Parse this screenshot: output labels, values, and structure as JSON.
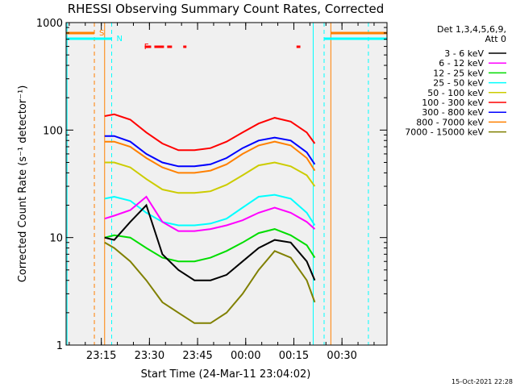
{
  "chart_data": {
    "type": "line",
    "title": "RHESSI Observing Summary Count Rates, Corrected",
    "xlabel": "Start Time (24-Mar-11 23:04:02)",
    "ylabel": "Corrected Count Rate (s⁻¹ detector⁻¹)",
    "yscale": "log",
    "ylim": [
      1,
      1000
    ],
    "xlim_minutes": [
      0,
      100
    ],
    "x_unit": "minutes after start time",
    "xticks": [
      {
        "label": "23:15",
        "minutes": 10.97
      },
      {
        "label": "23:30",
        "minutes": 25.97
      },
      {
        "label": "23:45",
        "minutes": 40.97
      },
      {
        "label": "00:00",
        "minutes": 55.97
      },
      {
        "label": "00:15",
        "minutes": 70.97
      },
      {
        "label": "00:30",
        "minutes": 85.97
      }
    ],
    "yticks": [
      {
        "label": "1",
        "value": 1
      },
      {
        "label": "10",
        "value": 10
      },
      {
        "label": "100",
        "value": 100
      },
      {
        "label": "1000",
        "value": 1000
      }
    ],
    "legend": {
      "position": "right",
      "header": [
        "Det 1,3,4,5,6,9,",
        "Att 0"
      ],
      "entries": [
        {
          "label": "3 - 6 keV",
          "color": "#000000"
        },
        {
          "label": "6 - 12 keV",
          "color": "#ff00ff"
        },
        {
          "label": "12 - 25 keV",
          "color": "#00dd00"
        },
        {
          "label": "25 - 50 keV",
          "color": "#00ffff"
        },
        {
          "label": "50 - 100 keV",
          "color": "#cccc00"
        },
        {
          "label": "100 - 300 keV",
          "color": "#ff0000"
        },
        {
          "label": "300 - 800 keV",
          "color": "#0000ff"
        },
        {
          "label": "800 - 7000 keV",
          "color": "#ff8000"
        },
        {
          "label": "7000 - 15000 keV",
          "color": "#808000"
        }
      ]
    },
    "data_window_minutes": [
      12.0,
      77.5
    ],
    "series_x_minutes": [
      12,
      15,
      20,
      25,
      30,
      35,
      40,
      45,
      50,
      55,
      60,
      65,
      70,
      75,
      77.5
    ],
    "series": [
      {
        "name": "100 - 300 keV",
        "color": "#ff0000",
        "values": [
          135,
          140,
          125,
          95,
          75,
          65,
          65,
          68,
          78,
          95,
          115,
          130,
          120,
          95,
          75
        ]
      },
      {
        "name": "300 - 800 keV",
        "color": "#0000ff",
        "values": [
          88,
          88,
          78,
          60,
          50,
          46,
          46,
          48,
          55,
          68,
          80,
          85,
          80,
          62,
          48
        ]
      },
      {
        "name": "800 - 7000 keV",
        "color": "#ff8000",
        "values": [
          78,
          78,
          70,
          55,
          45,
          40,
          40,
          42,
          48,
          60,
          72,
          78,
          72,
          55,
          42
        ]
      },
      {
        "name": "50 - 100 keV",
        "color": "#cccc00",
        "values": [
          50,
          50,
          45,
          35,
          28,
          26,
          26,
          27,
          31,
          38,
          47,
          50,
          46,
          38,
          30
        ]
      },
      {
        "name": "25 - 50 keV",
        "color": "#00ffff",
        "values": [
          23,
          24,
          22,
          17,
          14,
          13,
          13,
          13.5,
          15,
          19,
          24,
          25,
          23,
          17,
          13
        ]
      },
      {
        "name": "6 - 12 keV",
        "color": "#ff00ff",
        "values": [
          15,
          16,
          18,
          24,
          14,
          11.5,
          11.5,
          12,
          13,
          14.5,
          17,
          19,
          17,
          14,
          12
        ]
      },
      {
        "name": "12 - 25 keV",
        "color": "#00dd00",
        "values": [
          10,
          10.5,
          10,
          8,
          6.5,
          6,
          6,
          6.5,
          7.5,
          9,
          11,
          12,
          10.5,
          8.5,
          6.5
        ]
      },
      {
        "name": "3 - 6 keV",
        "color": "#000000",
        "values": [
          10,
          9.5,
          14,
          20,
          7,
          5,
          4,
          4,
          4.5,
          6,
          8,
          9.5,
          9,
          6,
          4
        ]
      },
      {
        "name": "7000 - 15000 keV",
        "color": "#808000",
        "values": [
          9,
          8,
          6,
          4,
          2.5,
          2,
          1.6,
          1.6,
          2,
          3,
          5,
          7.5,
          6.5,
          4,
          2.5
        ]
      }
    ],
    "markers": [
      {
        "label": "S",
        "color": "#ff8000",
        "minutes": 8.8
      },
      {
        "label": "N",
        "color": "#00ffff",
        "minutes": 14.2
      },
      {
        "label": "F",
        "color": "#ff0000",
        "minutes": 22.8
      }
    ],
    "vertical_lines_minutes": [
      {
        "color": "#ff8000",
        "style": "dashed",
        "minutes": 8.8
      },
      {
        "color": "#00ffff",
        "style": "dashed",
        "minutes": 14.2
      },
      {
        "color": "#00ffff",
        "style": "dashed",
        "minutes": 80.4
      },
      {
        "color": "#ff8000",
        "style": "solid",
        "minutes": 82.5
      },
      {
        "color": "#00ffff",
        "style": "dashed",
        "minutes": 94.2
      },
      {
        "color": "#00ffff",
        "style": "solid",
        "minutes": 0.3
      },
      {
        "color": "#ff8000",
        "style": "solid",
        "minutes": 12.0
      },
      {
        "color": "#00ffff",
        "style": "solid",
        "minutes": 77.0
      }
    ],
    "bars_minutes": [
      {
        "name": "SAA",
        "color": "#ff8000",
        "ranges": [
          [
            0,
            8.8
          ],
          [
            82.5,
            100
          ]
        ]
      },
      {
        "name": "Night",
        "color": "#00ffff",
        "ranges": [
          [
            0,
            14.2
          ],
          [
            80.4,
            100
          ]
        ]
      },
      {
        "name": "Flare",
        "color": "#ff0000",
        "ranges": [
          [
            24.5,
            26.5
          ],
          [
            27.5,
            30.5
          ],
          [
            31.5,
            33
          ],
          [
            36.5,
            37.5
          ],
          [
            71.8,
            73
          ]
        ]
      }
    ]
  },
  "footer": {
    "timestamp": "15-Oct-2021 22:28"
  }
}
